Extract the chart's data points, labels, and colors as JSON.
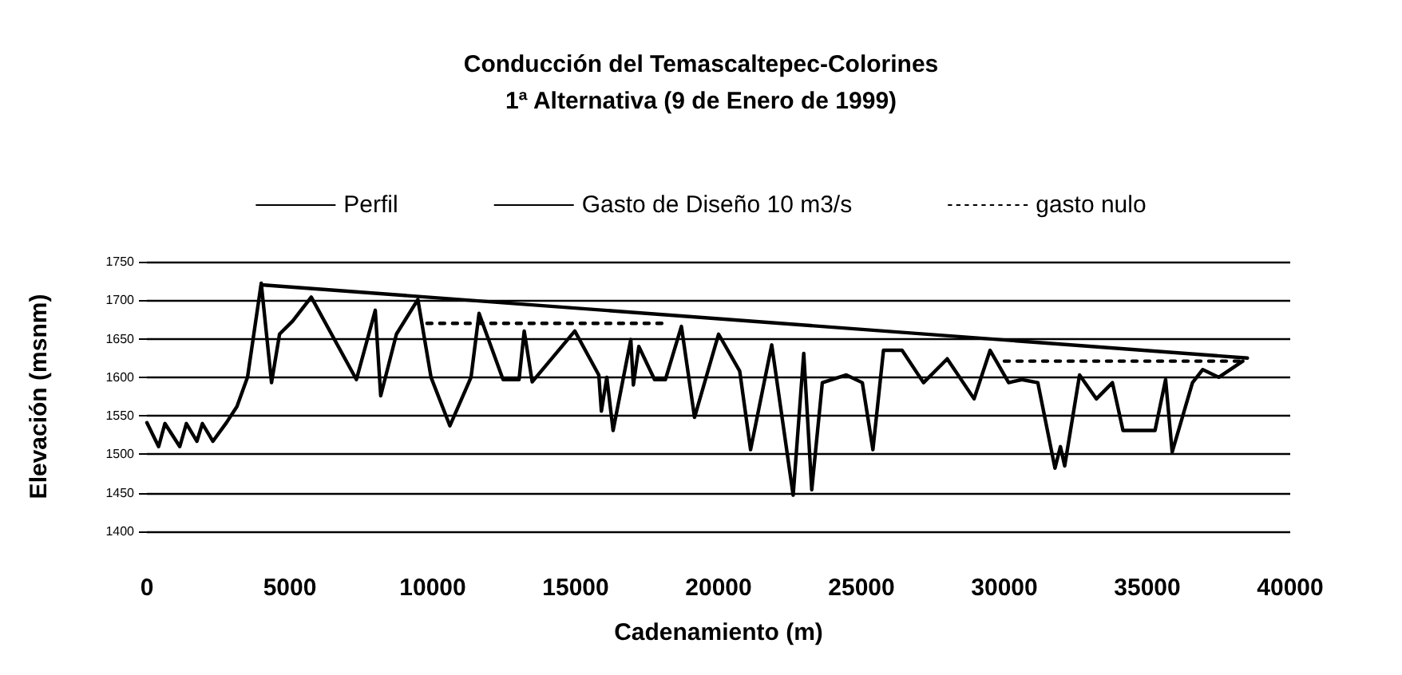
{
  "chart_data": {
    "type": "line",
    "title": "Conducción del Temascaltepec-Colorines",
    "subtitle": "1ª Alternativa (9 de Enero de 1999)",
    "xlabel": "Cadenamiento (m)",
    "ylabel": "Elevación (msnm)",
    "xlim": [
      0,
      40000
    ],
    "xticks": [
      0,
      5000,
      10000,
      15000,
      20000,
      25000,
      30000,
      35000,
      40000
    ],
    "ylim": [
      1400,
      1750
    ],
    "yticks": [
      1400,
      1450,
      1500,
      1550,
      1600,
      1650,
      1700,
      1750
    ],
    "grid": "y",
    "legend": "top",
    "marker": "none",
    "series": [
      {
        "name": "Perfil",
        "color": "#000000",
        "line_style": "solid",
        "x": [
          0,
          410,
          630,
          1150,
          1380,
          1750,
          1940,
          2310,
          2780,
          3150,
          3520,
          4000,
          4360,
          4640,
          5100,
          5750,
          7330,
          7990,
          8180,
          8730,
          9480,
          9940,
          10600,
          11340,
          11620,
          12460,
          13020,
          13200,
          13480,
          14970,
          15810,
          15900,
          16090,
          16310,
          16930,
          17020,
          17210,
          17760,
          18140,
          18700,
          19160,
          20000,
          20740,
          21120,
          21860,
          22610,
          22980,
          23260,
          23630,
          24470,
          25030,
          25400,
          25770,
          26420,
          27170,
          28000,
          28940,
          29500,
          30150,
          30610,
          31170,
          31770,
          31960,
          32110,
          32630,
          33220,
          33780,
          34150,
          35270,
          35640,
          35870,
          36580,
          36940,
          37500,
          38340
        ],
        "values": [
          1541,
          1510,
          1540,
          1510,
          1540,
          1517,
          1540,
          1517,
          1541,
          1562,
          1600,
          1722,
          1593,
          1656,
          1673,
          1704,
          1597,
          1687,
          1576,
          1656,
          1701,
          1600,
          1537,
          1600,
          1683,
          1597,
          1597,
          1660,
          1594,
          1660,
          1603,
          1556,
          1600,
          1531,
          1649,
          1590,
          1640,
          1597,
          1597,
          1666,
          1548,
          1656,
          1608,
          1506,
          1642,
          1447,
          1631,
          1454,
          1593,
          1603,
          1593,
          1506,
          1635,
          1635,
          1593,
          1624,
          1572,
          1635,
          1593,
          1597,
          1593,
          1482,
          1510,
          1485,
          1603,
          1572,
          1593,
          1531,
          1531,
          1597,
          1503,
          1593,
          1610,
          1600,
          1621
        ]
      },
      {
        "name": "Gasto de Diseño 10 m3/s",
        "color": "#000000",
        "line_style": "solid",
        "x": [
          4000,
          38500
        ],
        "values": [
          1720,
          1625
        ]
      },
      {
        "name": "gasto nulo",
        "color": "#000000",
        "line_style": "dotted",
        "x": [
          9800,
          18200,
          24000,
          30000,
          38300
        ],
        "values": [
          1670,
          1670,
          null,
          1621,
          1621
        ]
      }
    ]
  }
}
